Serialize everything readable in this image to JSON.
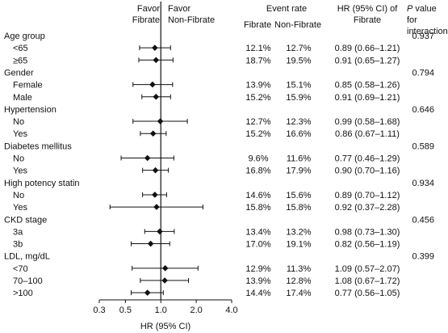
{
  "headers": {
    "favor_fibrate": [
      "Favor",
      "Fibrate"
    ],
    "favor_nonfibrate": [
      "Favor",
      "Non-Fibrate"
    ],
    "event_rate": "Event rate",
    "fibrate_col": "Fibrate",
    "nonfibrate_col": "Non-Fibrate",
    "hr_col": [
      "HR (95% CI) of",
      "Fibrate"
    ],
    "p_col_italic": "P",
    "p_col_rest": [
      " value for",
      "interaction"
    ]
  },
  "chart_data": {
    "type": "forest",
    "xlabel": "HR (95% CI)",
    "xscale": "log",
    "xlim": [
      0.3,
      4.0
    ],
    "xticks": [
      "0.3",
      "0.5",
      "1.0",
      "2.0",
      "4.0"
    ],
    "reference_line": 1.0,
    "groups": [
      {
        "name": "Age group",
        "p_interaction": "0.937",
        "rows": [
          {
            "label": "<65",
            "hr": 0.89,
            "lo": 0.66,
            "hi": 1.21,
            "fibrate_rate": "12.1%",
            "nonfibrate_rate": "12.7%",
            "hr_text": "0.89 (0.66–1.21)"
          },
          {
            "label": "≥65",
            "hr": 0.91,
            "lo": 0.65,
            "hi": 1.27,
            "fibrate_rate": "18.7%",
            "nonfibrate_rate": "19.5%",
            "hr_text": "0.91 (0.65–1.27)"
          }
        ]
      },
      {
        "name": "Gender",
        "p_interaction": "0.794",
        "rows": [
          {
            "label": "Female",
            "hr": 0.85,
            "lo": 0.58,
            "hi": 1.26,
            "fibrate_rate": "13.9%",
            "nonfibrate_rate": "15.1%",
            "hr_text": "0.85 (0.58–1.26)"
          },
          {
            "label": "Male",
            "hr": 0.91,
            "lo": 0.69,
            "hi": 1.21,
            "fibrate_rate": "15.2%",
            "nonfibrate_rate": "15.9%",
            "hr_text": "0.91 (0.69–1.21)"
          }
        ]
      },
      {
        "name": "Hypertension",
        "p_interaction": "0.646",
        "rows": [
          {
            "label": "No",
            "hr": 0.99,
            "lo": 0.58,
            "hi": 1.68,
            "fibrate_rate": "12.7%",
            "nonfibrate_rate": "12.3%",
            "hr_text": "0.99 (0.58–1.68)"
          },
          {
            "label": "Yes",
            "hr": 0.86,
            "lo": 0.67,
            "hi": 1.11,
            "fibrate_rate": "15.2%",
            "nonfibrate_rate": "16.6%",
            "hr_text": "0.86 (0.67–1.11)"
          }
        ]
      },
      {
        "name": "Diabetes mellitus",
        "p_interaction": "0.589",
        "rows": [
          {
            "label": "No",
            "hr": 0.77,
            "lo": 0.46,
            "hi": 1.29,
            "fibrate_rate": "9.6%",
            "nonfibrate_rate": "11.6%",
            "hr_text": "0.77 (0.46–1.29)"
          },
          {
            "label": "Yes",
            "hr": 0.9,
            "lo": 0.7,
            "hi": 1.16,
            "fibrate_rate": "16.8%",
            "nonfibrate_rate": "17.9%",
            "hr_text": "0.90 (0.70–1.16)"
          }
        ]
      },
      {
        "name": "High potency statin",
        "p_interaction": "0.934",
        "rows": [
          {
            "label": "No",
            "hr": 0.89,
            "lo": 0.7,
            "hi": 1.12,
            "fibrate_rate": "14.6%",
            "nonfibrate_rate": "15.6%",
            "hr_text": "0.89 (0.70–1.12)"
          },
          {
            "label": "Yes",
            "hr": 0.92,
            "lo": 0.37,
            "hi": 2.28,
            "fibrate_rate": "15.8%",
            "nonfibrate_rate": "15.8%",
            "hr_text": "0.92 (0.37–2.28)"
          }
        ]
      },
      {
        "name": "CKD stage",
        "p_interaction": "0.456",
        "rows": [
          {
            "label": "3a",
            "hr": 0.98,
            "lo": 0.73,
            "hi": 1.3,
            "fibrate_rate": "13.4%",
            "nonfibrate_rate": "13.2%",
            "hr_text": "0.98 (0.73–1.30)"
          },
          {
            "label": "3b",
            "hr": 0.82,
            "lo": 0.56,
            "hi": 1.19,
            "fibrate_rate": "17.0%",
            "nonfibrate_rate": "19.1%",
            "hr_text": "0.82 (0.56–1.19)"
          }
        ]
      },
      {
        "name": "LDL, mg/dL",
        "p_interaction": "0.399",
        "rows": [
          {
            "label": "<70",
            "hr": 1.09,
            "lo": 0.57,
            "hi": 2.07,
            "fibrate_rate": "12.9%",
            "nonfibrate_rate": "11.3%",
            "hr_text": "1.09 (0.57–2.07)"
          },
          {
            "label": "70–100",
            "hr": 1.08,
            "lo": 0.67,
            "hi": 1.72,
            "fibrate_rate": "13.9%",
            "nonfibrate_rate": "12.8%",
            "hr_text": "1.08 (0.67–1.72)"
          },
          {
            "label": ">100",
            "hr": 0.77,
            "lo": 0.56,
            "hi": 1.05,
            "fibrate_rate": "14.4%",
            "nonfibrate_rate": "17.4%",
            "hr_text": "0.77 (0.56–1.05)"
          }
        ]
      }
    ]
  }
}
